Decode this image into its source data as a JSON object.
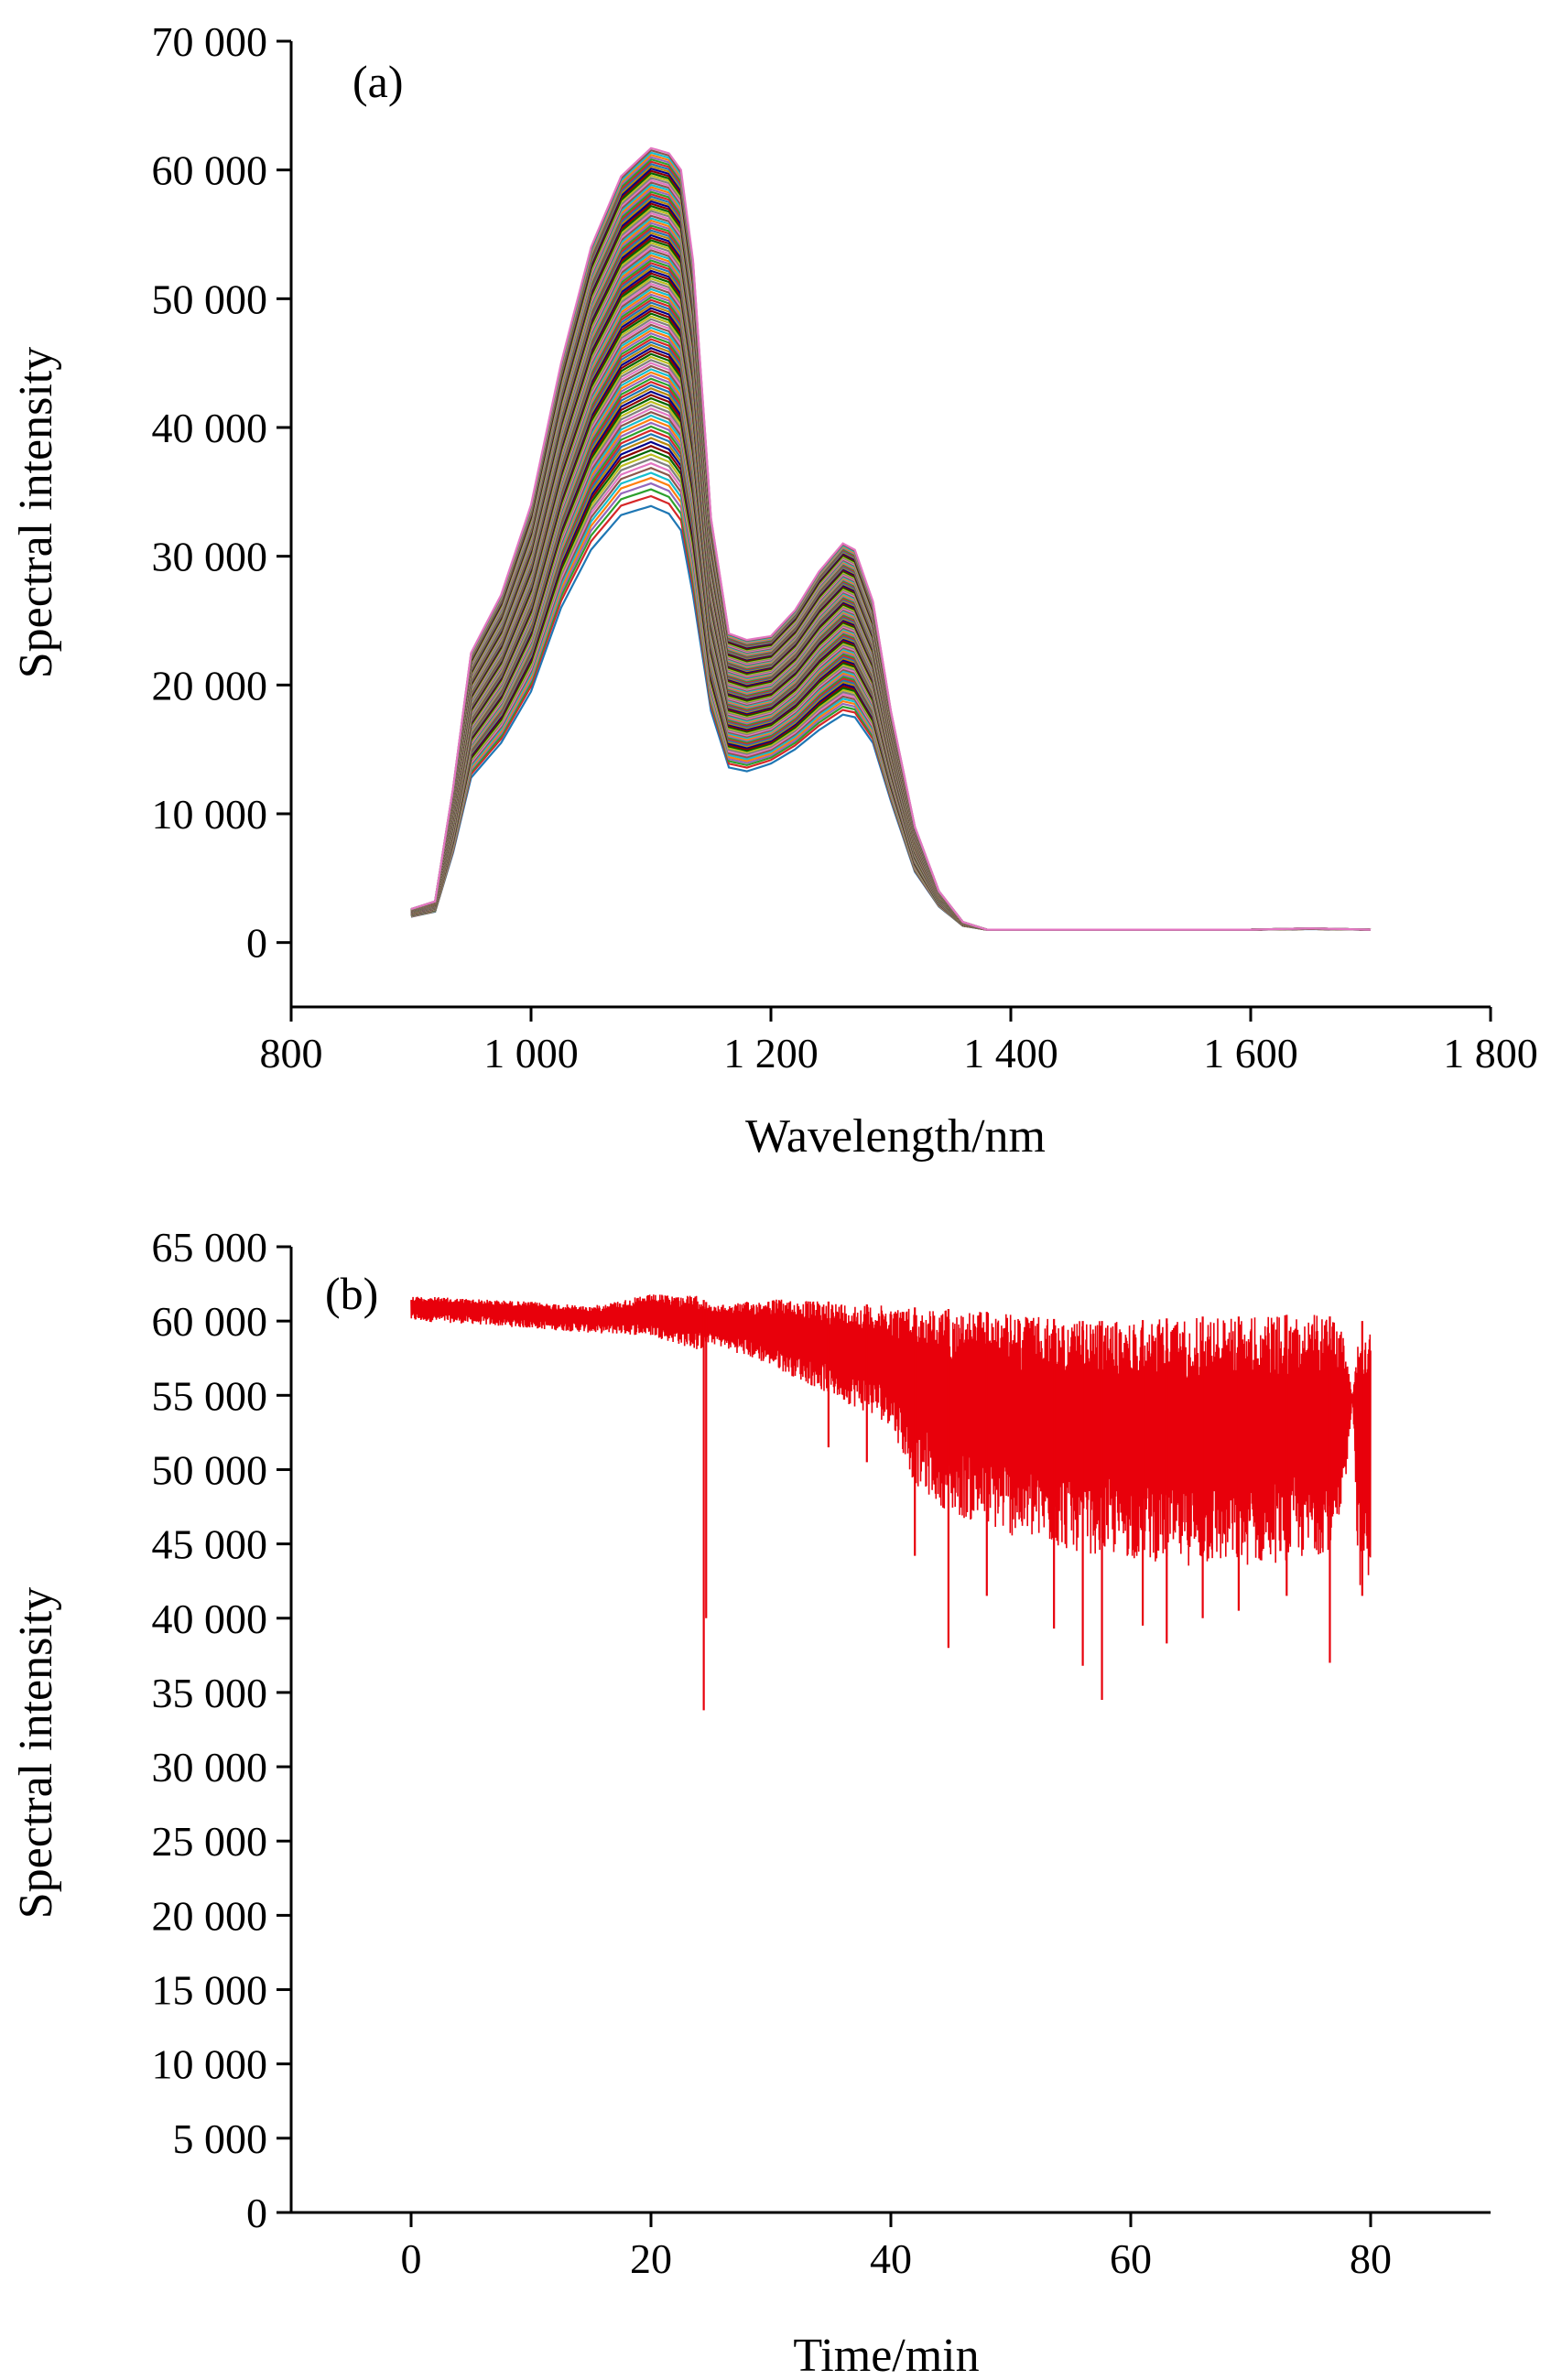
{
  "chart_data": [
    {
      "panel": "(a)",
      "type": "line",
      "title": "",
      "xlabel": "Wavelength/nm",
      "ylabel": "Spectral intensity",
      "xlim": [
        800,
        1800
      ],
      "ylim": [
        -5000,
        70000
      ],
      "x_ticks": [
        800,
        1000,
        1200,
        1400,
        1600,
        1800
      ],
      "x_tick_labels": [
        "800",
        "1 000",
        "1 200",
        "1 400",
        "1 600",
        "1 800"
      ],
      "y_ticks": [
        0,
        10000,
        20000,
        30000,
        40000,
        50000,
        60000,
        70000
      ],
      "y_tick_labels": [
        "0",
        "10 000",
        "20 000",
        "30 000",
        "40 000",
        "50 000",
        "60 000",
        "70 000"
      ],
      "grid": false,
      "legend": "none",
      "series_count_approx": 120,
      "series_palette": [
        "#1f77b4",
        "#d62728",
        "#2ca02c",
        "#9467bd",
        "#ff7f0e",
        "#17becf",
        "#8c564b",
        "#e377c2",
        "#7f7f7f",
        "#bcbd22",
        "#006400",
        "#8b0000",
        "#00008b",
        "#b8860b"
      ],
      "max_envelope": {
        "x": [
          900,
          920,
          935,
          950,
          975,
          1000,
          1025,
          1050,
          1075,
          1100,
          1115,
          1125,
          1135,
          1150,
          1165,
          1180,
          1200,
          1220,
          1240,
          1260,
          1270,
          1285,
          1300,
          1320,
          1340,
          1360,
          1380,
          1400,
          1500,
          1600,
          1650,
          1700
        ],
        "y": [
          2600,
          3200,
          12000,
          22500,
          27000,
          34000,
          45000,
          54000,
          59500,
          61700,
          61300,
          60000,
          53000,
          33000,
          24000,
          23500,
          23800,
          25800,
          28800,
          31000,
          30500,
          26500,
          18000,
          9000,
          4000,
          1600,
          1000,
          1000,
          1000,
          1000,
          1100,
          1000
        ]
      },
      "min_envelope": {
        "x": [
          900,
          920,
          935,
          950,
          975,
          1000,
          1025,
          1050,
          1075,
          1100,
          1115,
          1125,
          1135,
          1150,
          1165,
          1180,
          1200,
          1220,
          1240,
          1260,
          1270,
          1285,
          1300,
          1320,
          1340,
          1360,
          1380,
          1400,
          1500,
          1600,
          1650,
          1700
        ],
        "y": [
          2000,
          2400,
          7000,
          12800,
          15500,
          19500,
          26000,
          30500,
          33200,
          33900,
          33300,
          32000,
          27000,
          18000,
          13600,
          13300,
          13900,
          15000,
          16500,
          17700,
          17500,
          15500,
          11000,
          5500,
          2800,
          1300,
          1000,
          1000,
          1000,
          1000,
          1050,
          1000
        ]
      }
    },
    {
      "panel": "(b)",
      "type": "line",
      "title": "",
      "xlabel": "Time/min",
      "ylabel": "Spectral intensity",
      "xlim": [
        -10,
        90
      ],
      "ylim": [
        0,
        65000
      ],
      "x_ticks": [
        0,
        20,
        40,
        60,
        80
      ],
      "x_tick_labels": [
        "0",
        "20",
        "40",
        "60",
        "80"
      ],
      "y_ticks": [
        0,
        5000,
        10000,
        15000,
        20000,
        25000,
        30000,
        35000,
        40000,
        45000,
        50000,
        55000,
        60000,
        65000
      ],
      "y_tick_labels": [
        "0",
        "5 000",
        "10 000",
        "15 000",
        "20 000",
        "25 000",
        "30 000",
        "35 000",
        "40 000",
        "45 000",
        "50 000",
        "55 000",
        "60 000",
        "65 000"
      ],
      "grid": false,
      "legend": "none",
      "line_color": "#e8000b",
      "series": [
        {
          "x_range": [
            0,
            80
          ],
          "upper_envelope": {
            "x": [
              0,
              5,
              10,
              15,
              20,
              24,
              25,
              30,
              35,
              40,
              45,
              50,
              55,
              60,
              65,
              70,
              75,
              77.5,
              78.5,
              79,
              80
            ],
            "y": [
              61700,
              61500,
              61300,
              61000,
              61800,
              61700,
              61000,
              61500,
              61300,
              61000,
              60800,
              60500,
              60000,
              60000,
              60300,
              60300,
              60500,
              60200,
              55000,
              60000,
              60000
            ]
          },
          "lower_envelope": {
            "x": [
              0,
              5,
              10,
              15,
              20,
              24,
              25,
              30,
              35,
              40,
              42,
              45,
              50,
              55,
              60,
              65,
              70,
              75,
              77.5,
              78.5,
              79,
              80
            ],
            "y": [
              60000,
              59800,
              59500,
              59200,
              59000,
              58000,
              58500,
              57000,
              55000,
              53000,
              49000,
              47000,
              45500,
              44500,
              44000,
              43500,
              43500,
              44000,
              45000,
              55000,
              42000,
              43000
            ]
          },
          "spikes": [
            {
              "x": 24.4,
              "y": 33800
            },
            {
              "x": 24.6,
              "y": 40000
            },
            {
              "x": 34.8,
              "y": 51500
            },
            {
              "x": 38.0,
              "y": 50500
            },
            {
              "x": 42.0,
              "y": 44200
            },
            {
              "x": 44.8,
              "y": 38000
            },
            {
              "x": 48.0,
              "y": 41500
            },
            {
              "x": 53.6,
              "y": 39300
            },
            {
              "x": 56.0,
              "y": 36800
            },
            {
              "x": 57.6,
              "y": 34500
            },
            {
              "x": 61.0,
              "y": 39500
            },
            {
              "x": 63.0,
              "y": 38300
            },
            {
              "x": 66.0,
              "y": 40000
            },
            {
              "x": 69.0,
              "y": 40500
            },
            {
              "x": 73.0,
              "y": 41500
            },
            {
              "x": 76.6,
              "y": 37000
            },
            {
              "x": 79.3,
              "y": 41500
            }
          ]
        }
      ]
    }
  ]
}
